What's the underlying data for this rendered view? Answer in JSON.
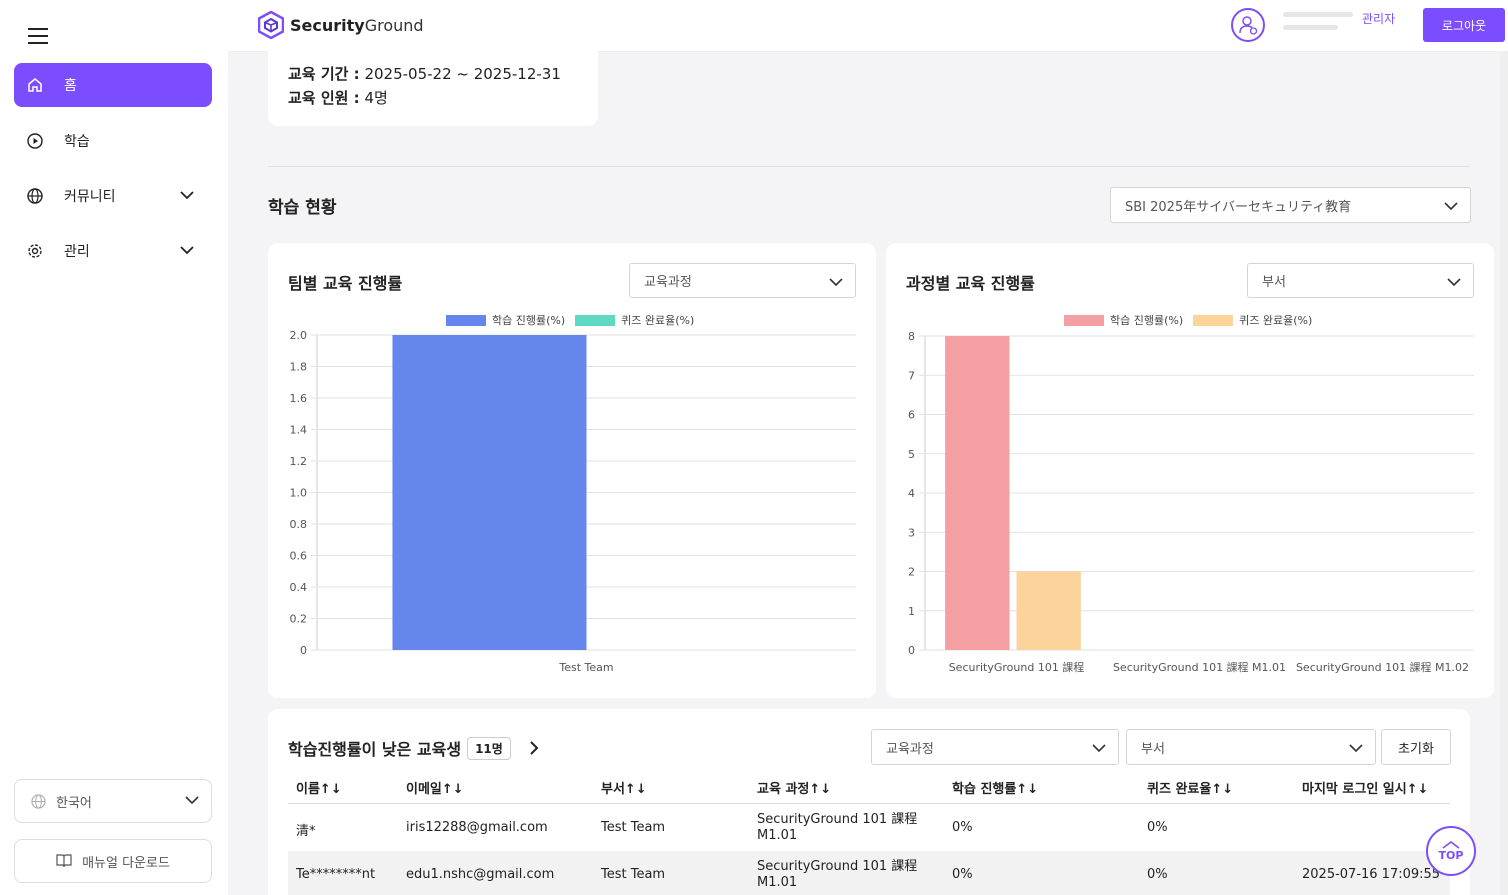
{
  "sidebar": {
    "items": [
      {
        "label": "홈"
      },
      {
        "label": "학습"
      },
      {
        "label": "커뮤니티"
      },
      {
        "label": "관리"
      }
    ],
    "language": "한국어",
    "manual_download": "매뉴얼 다운로드"
  },
  "header": {
    "logo_bold": "Security",
    "logo_light": "Ground",
    "role": "관리자",
    "logout": "로그아웃"
  },
  "info": {
    "period_label": "교육 기간 :",
    "period_value": "2025-05-22 ~ 2025-12-31",
    "members_label": "교육 인원 :",
    "members_value": "4명"
  },
  "status": {
    "title": "학습 현황",
    "course_select": "SBI 2025年サイバーセキュリティ教育"
  },
  "team_card": {
    "title": "팀별 교육 진행률",
    "filter": "교육과정"
  },
  "course_card": {
    "title": "과정별 교육 진행률",
    "filter": "부서"
  },
  "chart_data": [
    {
      "type": "bar",
      "title": "팀별 교육 진행률",
      "categories": [
        "Test Team"
      ],
      "series": [
        {
          "name": "학습 진행률(%)",
          "values": [
            2
          ],
          "color": "#6586ec"
        },
        {
          "name": "퀴즈 완료율(%)",
          "values": [
            0
          ],
          "color": "#5fd8c4"
        }
      ],
      "ylim": [
        0,
        2.0
      ],
      "yticks": [
        "0",
        "0.2",
        "0.4",
        "0.6",
        "0.8",
        "1.0",
        "1.2",
        "1.4",
        "1.6",
        "1.8",
        "2.0"
      ],
      "legend": "top-center",
      "grid": true
    },
    {
      "type": "bar",
      "title": "과정별 교육 진행률",
      "categories": [
        "SecurityGround 101 課程",
        "SecurityGround 101 課程 M1.01",
        "SecurityGround 101 課程 M1.02"
      ],
      "series": [
        {
          "name": "학습 진행률(%)",
          "values": [
            8,
            0,
            0
          ],
          "color": "#f4a0a2"
        },
        {
          "name": "퀴즈 완료율(%)",
          "values": [
            2,
            0,
            0
          ],
          "color": "#fdd39c"
        }
      ],
      "ylim": [
        0,
        8
      ],
      "yticks": [
        "0",
        "1",
        "2",
        "3",
        "4",
        "5",
        "6",
        "7",
        "8"
      ],
      "legend": "top-center",
      "grid": true
    }
  ],
  "table": {
    "title": "학습진행률이 낮은 교육생",
    "count": "11명",
    "filter_course": "교육과정",
    "filter_dept": "부서",
    "reset": "초기화",
    "columns": [
      "이름",
      "이메일",
      "부서",
      "교육 과정",
      "학습 진행률",
      "퀴즈 완료율",
      "마지막 로그인 일시"
    ],
    "rows": [
      {
        "name": "清*",
        "email": "iris12288@gmail.com",
        "dept": "Test Team",
        "course_line1": "SecurityGround 101 課程",
        "course_line2": "M1.01",
        "progress": "0%",
        "quiz": "0%",
        "last_login": ""
      },
      {
        "name": "Te********nt",
        "email": "edu1.nshc@gmail.com",
        "dept": "Test Team",
        "course_line1": "SecurityGround 101 課程",
        "course_line2": "M1.01",
        "progress": "0%",
        "quiz": "0%",
        "last_login": "2025-07-16 17:09:55"
      }
    ]
  },
  "top_button": "TOP",
  "colors": {
    "accent": "#7c4dff"
  }
}
